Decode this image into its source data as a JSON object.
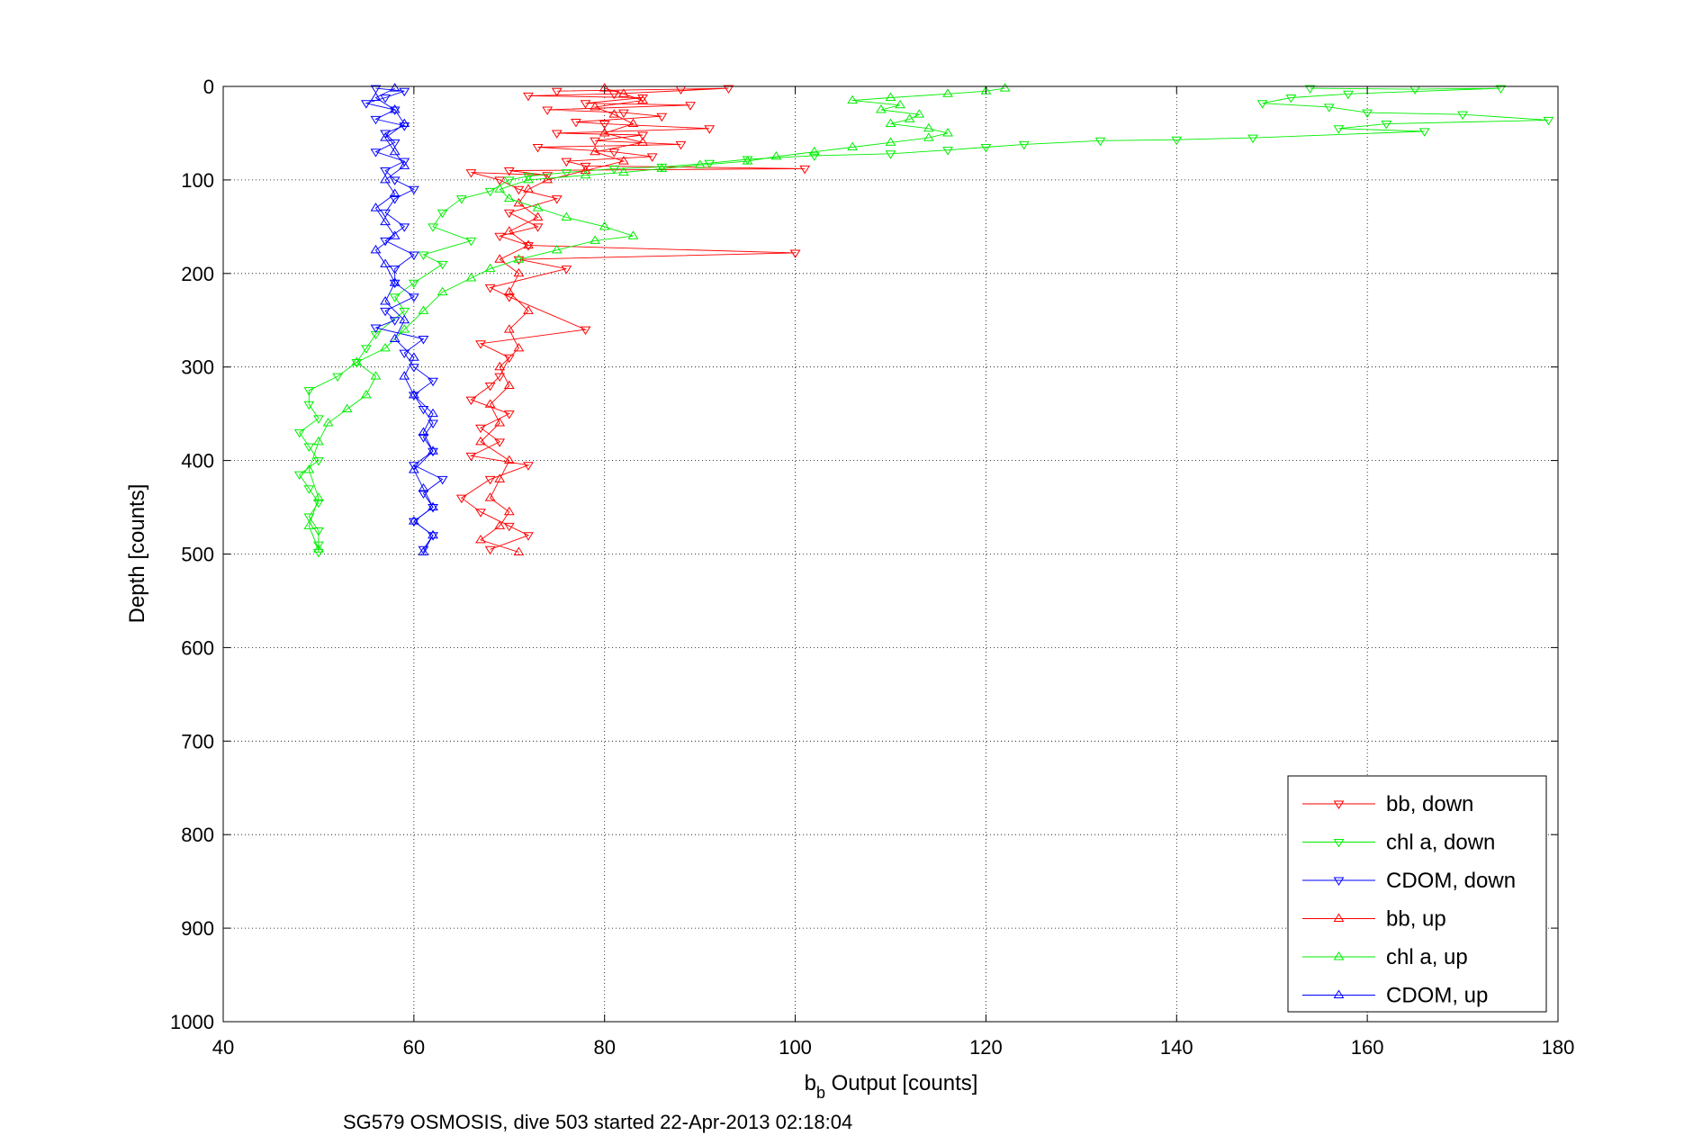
{
  "chart_data": {
    "type": "scatter",
    "title": "",
    "caption": "SG579 OSMOSIS, dive 503 started 22-Apr-2013 02:18:04",
    "xlabel_main": "b",
    "xlabel_sub": "b",
    "xlabel_rest": " Output [counts]",
    "ylabel": "Depth [counts]",
    "xlim": [
      40,
      180
    ],
    "ylim": [
      0,
      1000
    ],
    "y_reversed": true,
    "grid": true,
    "legend_position": "bottom-right",
    "x_ticks": [
      "40",
      "60",
      "80",
      "100",
      "120",
      "140",
      "160",
      "180"
    ],
    "y_ticks": [
      "0",
      "100",
      "200",
      "300",
      "400",
      "500",
      "600",
      "700",
      "800",
      "900",
      "1000"
    ],
    "series": [
      {
        "name": "bb, down",
        "color": "#ff0000",
        "marker": "triangle-down",
        "connected": true,
        "points": [
          [
            75,
            5
          ],
          [
            88,
            3
          ],
          [
            93,
            2
          ],
          [
            81,
            8
          ],
          [
            72,
            10
          ],
          [
            84,
            12
          ],
          [
            78,
            18
          ],
          [
            89,
            20
          ],
          [
            74,
            25
          ],
          [
            82,
            28
          ],
          [
            86,
            32
          ],
          [
            77,
            38
          ],
          [
            80,
            40
          ],
          [
            91,
            45
          ],
          [
            75,
            50
          ],
          [
            84,
            52
          ],
          [
            79,
            58
          ],
          [
            88,
            62
          ],
          [
            73,
            65
          ],
          [
            81,
            70
          ],
          [
            85,
            75
          ],
          [
            76,
            80
          ],
          [
            78,
            85
          ],
          [
            101,
            88
          ],
          [
            70,
            90
          ],
          [
            74,
            95
          ],
          [
            66,
            92
          ],
          [
            69,
            100
          ],
          [
            71,
            110
          ],
          [
            75,
            120
          ],
          [
            70,
            135
          ],
          [
            73,
            150
          ],
          [
            69,
            160
          ],
          [
            72,
            170
          ],
          [
            100,
            178
          ],
          [
            71,
            185
          ],
          [
            76,
            195
          ],
          [
            68,
            215
          ],
          [
            70,
            225
          ],
          [
            78,
            260
          ],
          [
            67,
            275
          ],
          [
            70,
            290
          ],
          [
            69,
            310
          ],
          [
            68,
            320
          ],
          [
            66,
            335
          ],
          [
            70,
            350
          ],
          [
            67,
            365
          ],
          [
            69,
            380
          ],
          [
            66,
            395
          ],
          [
            72,
            405
          ],
          [
            68,
            420
          ],
          [
            65,
            440
          ],
          [
            67,
            455
          ],
          [
            70,
            470
          ],
          [
            72,
            480
          ],
          [
            68,
            495
          ]
        ]
      },
      {
        "name": "chl a, down",
        "color": "#00ee00",
        "marker": "triangle-down",
        "connected": true,
        "points": [
          [
            154,
            2
          ],
          [
            165,
            3
          ],
          [
            174,
            2
          ],
          [
            158,
            8
          ],
          [
            152,
            12
          ],
          [
            149,
            18
          ],
          [
            156,
            22
          ],
          [
            160,
            28
          ],
          [
            170,
            30
          ],
          [
            179,
            36
          ],
          [
            162,
            40
          ],
          [
            157,
            45
          ],
          [
            166,
            48
          ],
          [
            148,
            55
          ],
          [
            140,
            57
          ],
          [
            132,
            58
          ],
          [
            124,
            62
          ],
          [
            120,
            65
          ],
          [
            116,
            68
          ],
          [
            110,
            72
          ],
          [
            102,
            74
          ],
          [
            95,
            78
          ],
          [
            91,
            82
          ],
          [
            86,
            86
          ],
          [
            81,
            88
          ],
          [
            76,
            92
          ],
          [
            72,
            96
          ],
          [
            70,
            100
          ],
          [
            68,
            112
          ],
          [
            65,
            120
          ],
          [
            63,
            135
          ],
          [
            62,
            150
          ],
          [
            66,
            165
          ],
          [
            61,
            180
          ],
          [
            63,
            190
          ],
          [
            60,
            210
          ],
          [
            58,
            225
          ],
          [
            59,
            240
          ],
          [
            56,
            265
          ],
          [
            55,
            280
          ],
          [
            54,
            295
          ],
          [
            52,
            310
          ],
          [
            49,
            325
          ],
          [
            49,
            340
          ],
          [
            50,
            355
          ],
          [
            48,
            370
          ],
          [
            49,
            385
          ],
          [
            50,
            400
          ],
          [
            48,
            415
          ],
          [
            49,
            430
          ],
          [
            50,
            445
          ],
          [
            49,
            460
          ],
          [
            50,
            475
          ],
          [
            50,
            490
          ],
          [
            50,
            498
          ]
        ]
      },
      {
        "name": "CDOM, down",
        "color": "#0000ff",
        "marker": "triangle-down",
        "connected": true,
        "points": [
          [
            56,
            2
          ],
          [
            59,
            5
          ],
          [
            57,
            12
          ],
          [
            55,
            18
          ],
          [
            58,
            25
          ],
          [
            56,
            35
          ],
          [
            59,
            42
          ],
          [
            57,
            50
          ],
          [
            58,
            60
          ],
          [
            56,
            70
          ],
          [
            59,
            80
          ],
          [
            57,
            90
          ],
          [
            58,
            100
          ],
          [
            60,
            110
          ],
          [
            58,
            120
          ],
          [
            57,
            135
          ],
          [
            59,
            150
          ],
          [
            57,
            165
          ],
          [
            60,
            180
          ],
          [
            58,
            195
          ],
          [
            58,
            210
          ],
          [
            60,
            225
          ],
          [
            57,
            240
          ],
          [
            58,
            250
          ],
          [
            56,
            258
          ],
          [
            61,
            270
          ],
          [
            59,
            285
          ],
          [
            60,
            300
          ],
          [
            62,
            315
          ],
          [
            60,
            330
          ],
          [
            61,
            345
          ],
          [
            62,
            360
          ],
          [
            61,
            375
          ],
          [
            62,
            390
          ],
          [
            60,
            405
          ],
          [
            63,
            420
          ],
          [
            61,
            435
          ],
          [
            62,
            450
          ],
          [
            60,
            465
          ],
          [
            62,
            480
          ],
          [
            61,
            495
          ]
        ]
      },
      {
        "name": "bb, up",
        "color": "#ff0000",
        "marker": "triangle-up",
        "connected": true,
        "points": [
          [
            71,
            498
          ],
          [
            67,
            485
          ],
          [
            69,
            470
          ],
          [
            70,
            455
          ],
          [
            68,
            440
          ],
          [
            69,
            420
          ],
          [
            70,
            400
          ],
          [
            67,
            380
          ],
          [
            69,
            360
          ],
          [
            68,
            340
          ],
          [
            70,
            320
          ],
          [
            69,
            300
          ],
          [
            71,
            280
          ],
          [
            70,
            260
          ],
          [
            72,
            240
          ],
          [
            70,
            220
          ],
          [
            71,
            200
          ],
          [
            69,
            185
          ],
          [
            72,
            170
          ],
          [
            70,
            155
          ],
          [
            73,
            140
          ],
          [
            71,
            125
          ],
          [
            72,
            110
          ],
          [
            74,
            100
          ],
          [
            78,
            90
          ],
          [
            82,
            80
          ],
          [
            79,
            70
          ],
          [
            84,
            60
          ],
          [
            80,
            50
          ],
          [
            83,
            40
          ],
          [
            81,
            30
          ],
          [
            79,
            22
          ],
          [
            84,
            15
          ],
          [
            82,
            8
          ],
          [
            80,
            2
          ]
        ]
      },
      {
        "name": "chl a, up",
        "color": "#00ee00",
        "marker": "triangle-up",
        "connected": true,
        "points": [
          [
            50,
            495
          ],
          [
            49,
            470
          ],
          [
            50,
            440
          ],
          [
            49,
            410
          ],
          [
            50,
            380
          ],
          [
            51,
            360
          ],
          [
            53,
            345
          ],
          [
            55,
            330
          ],
          [
            56,
            310
          ],
          [
            54,
            295
          ],
          [
            57,
            280
          ],
          [
            59,
            260
          ],
          [
            61,
            240
          ],
          [
            63,
            220
          ],
          [
            66,
            205
          ],
          [
            68,
            195
          ],
          [
            71,
            185
          ],
          [
            75,
            175
          ],
          [
            79,
            165
          ],
          [
            83,
            160
          ],
          [
            80,
            150
          ],
          [
            76,
            140
          ],
          [
            73,
            130
          ],
          [
            70,
            120
          ],
          [
            69,
            110
          ],
          [
            72,
            100
          ],
          [
            78,
            95
          ],
          [
            82,
            92
          ],
          [
            86,
            88
          ],
          [
            90,
            84
          ],
          [
            95,
            80
          ],
          [
            98,
            75
          ],
          [
            102,
            70
          ],
          [
            106,
            65
          ],
          [
            110,
            60
          ],
          [
            114,
            55
          ],
          [
            116,
            50
          ],
          [
            114,
            45
          ],
          [
            110,
            40
          ],
          [
            112,
            35
          ],
          [
            113,
            30
          ],
          [
            109,
            25
          ],
          [
            111,
            20
          ],
          [
            106,
            15
          ],
          [
            110,
            12
          ],
          [
            116,
            8
          ],
          [
            120,
            5
          ],
          [
            122,
            2
          ]
        ]
      },
      {
        "name": "CDOM, up",
        "color": "#0000ff",
        "marker": "triangle-up",
        "connected": true,
        "points": [
          [
            61,
            498
          ],
          [
            62,
            480
          ],
          [
            60,
            465
          ],
          [
            62,
            450
          ],
          [
            61,
            430
          ],
          [
            60,
            410
          ],
          [
            62,
            390
          ],
          [
            61,
            370
          ],
          [
            62,
            350
          ],
          [
            60,
            330
          ],
          [
            59,
            310
          ],
          [
            60,
            290
          ],
          [
            58,
            270
          ],
          [
            59,
            250
          ],
          [
            57,
            230
          ],
          [
            58,
            210
          ],
          [
            57,
            190
          ],
          [
            56,
            175
          ],
          [
            58,
            160
          ],
          [
            57,
            145
          ],
          [
            56,
            130
          ],
          [
            58,
            115
          ],
          [
            57,
            100
          ],
          [
            59,
            85
          ],
          [
            58,
            70
          ],
          [
            57,
            55
          ],
          [
            59,
            40
          ],
          [
            58,
            25
          ],
          [
            56,
            12
          ],
          [
            58,
            2
          ]
        ]
      }
    ]
  }
}
